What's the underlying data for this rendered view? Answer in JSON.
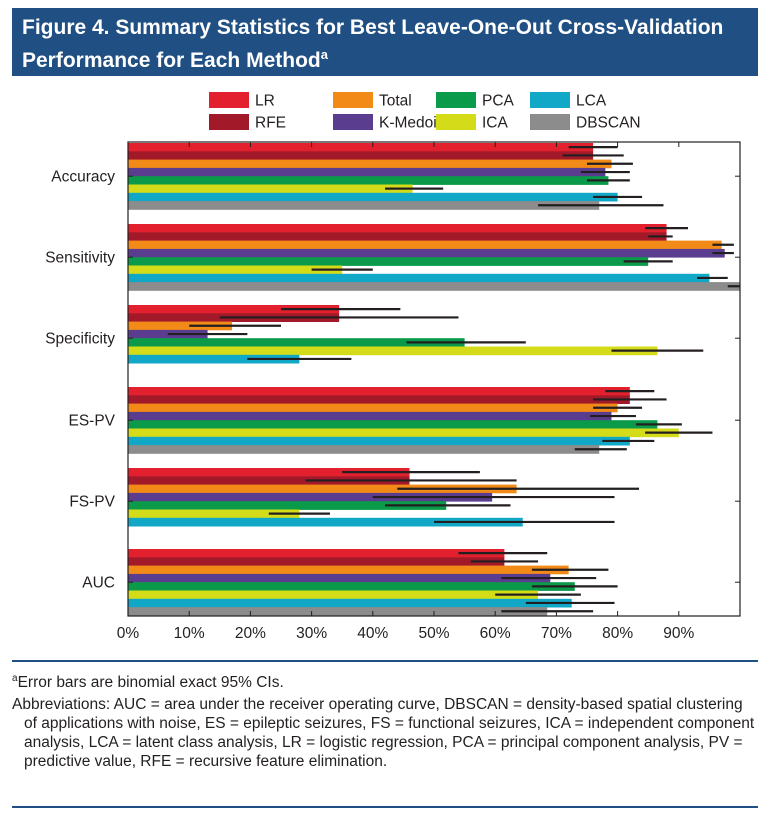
{
  "header": {
    "title": "Figure 4. Summary Statistics for Best Leave-One-Out Cross-Validation Performance for Each Method",
    "title_sup": "a"
  },
  "notes": {
    "footnote_marker": "a",
    "footnote": "Error bars are binomial exact 95% CIs.",
    "abbreviations": "Abbreviations: AUC = area under the receiver operating curve, DBSCAN = density-based spatial clustering of applications with noise, ES = epileptic seizures, FS = functional seizures, ICA = independent component analysis, LCA = latent class analysis, LR = logistic regression, PCA = principal component analysis, PV = predictive value, RFE = recursive feature elimination."
  },
  "colors": {
    "header_bg": "#1f4f83",
    "rule": "#1f4f83",
    "error_bar": "#231f20"
  },
  "chart_data": {
    "type": "bar",
    "orientation": "horizontal",
    "categories": [
      "Accuracy",
      "Sensitivity",
      "Specificity",
      "ES-PV",
      "FS-PV",
      "AUC"
    ],
    "xlim": [
      0,
      100
    ],
    "xticks": [
      "0%",
      "10%",
      "20%",
      "30%",
      "40%",
      "50%",
      "60%",
      "70%",
      "80%",
      "90%"
    ],
    "grid": false,
    "legend_position": "top",
    "series": [
      {
        "name": "LR",
        "color": "#e3202d",
        "values": [
          76,
          88,
          34.5,
          82,
          46,
          61.5
        ],
        "ci": [
          [
            72,
            80
          ],
          [
            84.5,
            91.5
          ],
          [
            25,
            44.5
          ],
          [
            78,
            86
          ],
          [
            35,
            57.5
          ],
          [
            54,
            68.5
          ]
        ]
      },
      {
        "name": "RFE",
        "color": "#a21a2a",
        "values": [
          76,
          88,
          34.5,
          82,
          46,
          61.5
        ],
        "ci": [
          [
            71,
            81
          ],
          [
            85,
            89
          ],
          [
            15,
            54
          ],
          [
            76,
            88
          ],
          [
            29,
            63.5
          ],
          [
            56,
            67
          ]
        ]
      },
      {
        "name": "Total",
        "color": "#f28a18",
        "values": [
          79,
          97,
          17,
          80,
          63.5,
          72
        ],
        "ci": [
          [
            75,
            82.5
          ],
          [
            95.5,
            99
          ],
          [
            10,
            25
          ],
          [
            76,
            84
          ],
          [
            44,
            83.5
          ],
          [
            66,
            78.5
          ]
        ]
      },
      {
        "name": "K-Medoid",
        "color": "#5b3d8f",
        "values": [
          78,
          97.5,
          13,
          79,
          59.5,
          69
        ],
        "ci": [
          [
            74,
            82
          ],
          [
            95.5,
            99
          ],
          [
            6.5,
            19.5
          ],
          [
            75.5,
            83
          ],
          [
            40,
            79.5
          ],
          [
            61,
            76.5
          ]
        ]
      },
      {
        "name": "PCA",
        "color": "#0a9a4a",
        "values": [
          78.5,
          85,
          55,
          86.5,
          52,
          73
        ],
        "ci": [
          [
            75,
            82
          ],
          [
            81,
            89
          ],
          [
            45.5,
            65
          ],
          [
            83,
            90.5
          ],
          [
            42,
            62.5
          ],
          [
            66,
            80
          ]
        ]
      },
      {
        "name": "ICA",
        "color": "#d4dc1a",
        "values": [
          46.5,
          35,
          86.5,
          90,
          28,
          67
        ],
        "ci": [
          [
            42,
            51.5
          ],
          [
            30,
            40
          ],
          [
            79,
            94
          ],
          [
            84.5,
            95.5
          ],
          [
            23,
            33
          ],
          [
            60,
            74
          ]
        ]
      },
      {
        "name": "LCA",
        "color": "#10a8c6",
        "values": [
          80,
          95,
          28,
          82,
          64.5,
          72.5
        ],
        "ci": [
          [
            76,
            84
          ],
          [
            93,
            98
          ],
          [
            19.5,
            36.5
          ],
          [
            77.5,
            86
          ],
          [
            50,
            79.5
          ],
          [
            65,
            79.5
          ]
        ]
      },
      {
        "name": "DBSCAN",
        "color": "#8c8c8c",
        "values": [
          77,
          100,
          0,
          77,
          0,
          68.5
        ],
        "ci": [
          [
            67,
            87.5
          ],
          [
            98,
            100
          ],
          null,
          [
            73,
            81.5
          ],
          null,
          [
            61,
            76
          ]
        ]
      }
    ],
    "legend_order": [
      "LR",
      "Total",
      "PCA",
      "LCA",
      "RFE",
      "K-Medoid",
      "ICA",
      "DBSCAN"
    ]
  }
}
